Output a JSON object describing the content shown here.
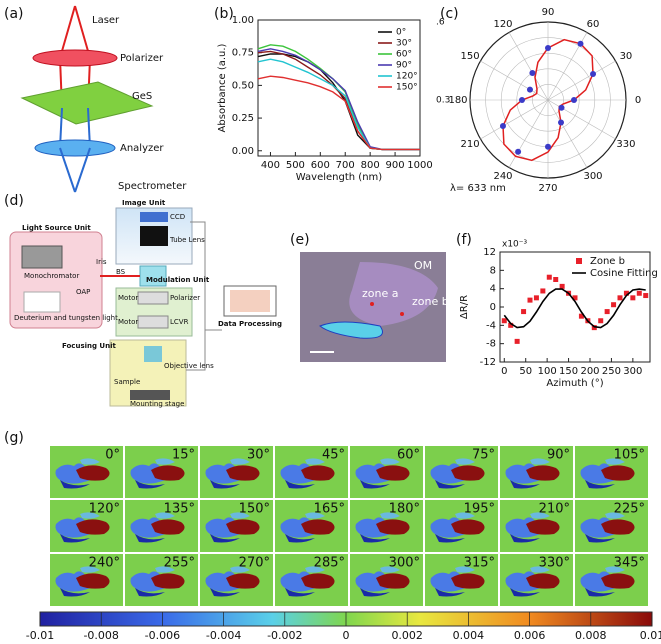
{
  "panels": {
    "a": {
      "label": "(a)",
      "texts": [
        "Laser",
        "Polarizer",
        "GeS",
        "Analyzer",
        "Spectrometer"
      ]
    },
    "b": {
      "label": "(b)"
    },
    "c": {
      "label": "(c)"
    },
    "d": {
      "label": "(d)",
      "texts": [
        "Light Source Unit",
        "Image Unit",
        "CCD",
        "Tube Lens",
        "Monochromator",
        "Iris",
        "OAP",
        "BS",
        "Modulation Unit",
        "Deuterium and tungsten light",
        "Motor",
        "Polarizer",
        "Motor",
        "LCVR",
        "Data Processing",
        "Focusing Unit",
        "Objective lens",
        "Sample",
        "Mounting stage"
      ]
    },
    "e": {
      "label": "(e)",
      "texts": [
        "OM",
        "zone a",
        "zone b"
      ]
    },
    "f": {
      "label": "(f)"
    },
    "g": {
      "label": "(g)",
      "angles": [
        "0°",
        "15°",
        "30°",
        "45°",
        "60°",
        "75°",
        "90°",
        "105°",
        "120°",
        "135°",
        "150°",
        "165°",
        "180°",
        "195°",
        "210°",
        "225°",
        "240°",
        "255°",
        "270°",
        "285°",
        "300°",
        "315°",
        "330°",
        "345°"
      ]
    }
  },
  "chart_data": [
    {
      "type": "line",
      "xlabel": "Wavelength (nm)",
      "ylabel": "Absorbance (a.u.)",
      "x": [
        350,
        400,
        450,
        500,
        550,
        600,
        650,
        700,
        750,
        800,
        850,
        900,
        950,
        1000
      ],
      "xlim": [
        350,
        1000
      ],
      "xticks": [
        400,
        500,
        600,
        700,
        800,
        900,
        1000
      ],
      "ylim": [
        -0.04,
        1.0
      ],
      "yticks": [
        {
          "value": 0,
          "label": "0.00"
        },
        {
          "value": 0.25,
          "label": "0.25"
        },
        {
          "value": 0.5,
          "label": "0.50"
        },
        {
          "value": 0.75,
          "label": "0.75"
        },
        {
          "value": 1,
          "label": "1.00"
        }
      ],
      "legend": "upper right",
      "series": [
        {
          "name": "0°",
          "color": "#111111",
          "values": [
            0.72,
            0.74,
            0.74,
            0.72,
            0.68,
            0.62,
            0.52,
            0.38,
            0.12,
            0.02,
            0.01,
            0.01,
            0.01,
            0.01
          ]
        },
        {
          "name": "30°",
          "color": "#8b1a1a",
          "values": [
            0.75,
            0.76,
            0.74,
            0.7,
            0.64,
            0.58,
            0.5,
            0.4,
            0.15,
            0.02,
            0.01,
            0.01,
            0.01,
            0.01
          ]
        },
        {
          "name": "60°",
          "color": "#3cc43c",
          "values": [
            0.78,
            0.81,
            0.8,
            0.76,
            0.7,
            0.63,
            0.55,
            0.45,
            0.2,
            0.02,
            0.01,
            0.01,
            0.01,
            0.01
          ]
        },
        {
          "name": "90°",
          "color": "#4b3bb0",
          "values": [
            0.76,
            0.78,
            0.76,
            0.73,
            0.68,
            0.62,
            0.55,
            0.46,
            0.22,
            0.03,
            0.01,
            0.01,
            0.01,
            0.01
          ]
        },
        {
          "name": "120°",
          "color": "#22c4d0",
          "values": [
            0.68,
            0.7,
            0.68,
            0.64,
            0.6,
            0.55,
            0.5,
            0.42,
            0.18,
            0.02,
            0.01,
            0.01,
            0.01,
            0.01
          ]
        },
        {
          "name": "150°",
          "color": "#e03030",
          "values": [
            0.55,
            0.57,
            0.56,
            0.54,
            0.52,
            0.49,
            0.45,
            0.38,
            0.15,
            0.02,
            0.01,
            0.01,
            0.01,
            0.01
          ]
        }
      ]
    },
    {
      "type": "polar",
      "annotation": "λ= 633 nm",
      "rlim": [
        0.3,
        0.6
      ],
      "rticks": [
        {
          "value": 0.6,
          "label": ".6"
        },
        {
          "value": 0.3,
          "label": "0.3"
        }
      ],
      "thetaticks": [
        0,
        30,
        60,
        90,
        120,
        150,
        180,
        210,
        240,
        270,
        300,
        330
      ],
      "points": {
        "color": "#3b3bc8",
        "theta": [
          0,
          30,
          60,
          90,
          120,
          150,
          180,
          210,
          240,
          270,
          300,
          330
        ],
        "r": [
          0.4,
          0.5,
          0.55,
          0.5,
          0.42,
          0.38,
          0.4,
          0.5,
          0.53,
          0.48,
          0.4,
          0.36
        ]
      },
      "fit": {
        "color": "#e02020",
        "theta": [
          0,
          15,
          30,
          45,
          60,
          75,
          90,
          105,
          120,
          135,
          150,
          165,
          180,
          195,
          210,
          225,
          240,
          255,
          270,
          285,
          300,
          315,
          330,
          345
        ],
        "r": [
          0.4,
          0.45,
          0.5,
          0.54,
          0.55,
          0.54,
          0.5,
          0.45,
          0.4,
          0.36,
          0.35,
          0.36,
          0.4,
          0.45,
          0.5,
          0.54,
          0.55,
          0.54,
          0.5,
          0.45,
          0.4,
          0.36,
          0.35,
          0.36
        ]
      }
    },
    {
      "type": "scatter",
      "xlabel": "Azimuth (°)",
      "ylabel": "ΔR/R",
      "ymultiplier": "x10⁻³",
      "x": [
        0,
        15,
        30,
        45,
        60,
        75,
        90,
        105,
        120,
        135,
        150,
        165,
        180,
        195,
        210,
        225,
        240,
        255,
        270,
        285,
        300,
        315,
        330
      ],
      "xlim": [
        -10,
        340
      ],
      "xticks": [
        0,
        50,
        100,
        150,
        200,
        250,
        300
      ],
      "ylim": [
        -12,
        12
      ],
      "yticks": [
        -12,
        -8,
        -4,
        0,
        4,
        8,
        12
      ],
      "legend": "upper right",
      "series": [
        {
          "name": "Zone b",
          "style": "markers",
          "color": "#e8202a",
          "values": [
            -3,
            -4,
            -7.5,
            -1,
            1.5,
            2,
            3.5,
            6.5,
            6,
            4.5,
            3,
            2,
            -2,
            -3,
            -4.5,
            -3,
            -1,
            0.5,
            2,
            3,
            2,
            3,
            2.5
          ]
        },
        {
          "name": "Cosine Fitting",
          "style": "line",
          "color": "#000000",
          "values": [
            -1.8,
            -3.6,
            -4.5,
            -4.3,
            -3.1,
            -1.1,
            1.2,
            3,
            3.9,
            3.9,
            3,
            1.2,
            -1.1,
            -3.1,
            -4.3,
            -4.5,
            -3.6,
            -1.8,
            0.5,
            2.5,
            3.7,
            3.9,
            3.7
          ]
        }
      ]
    },
    {
      "type": "colorbar",
      "xlim": [
        -0.01,
        0.01
      ],
      "xticks": [
        -0.01,
        -0.008,
        -0.006,
        -0.004,
        -0.002,
        0,
        0.002,
        0.004,
        0.006,
        0.008,
        0.01
      ]
    }
  ]
}
